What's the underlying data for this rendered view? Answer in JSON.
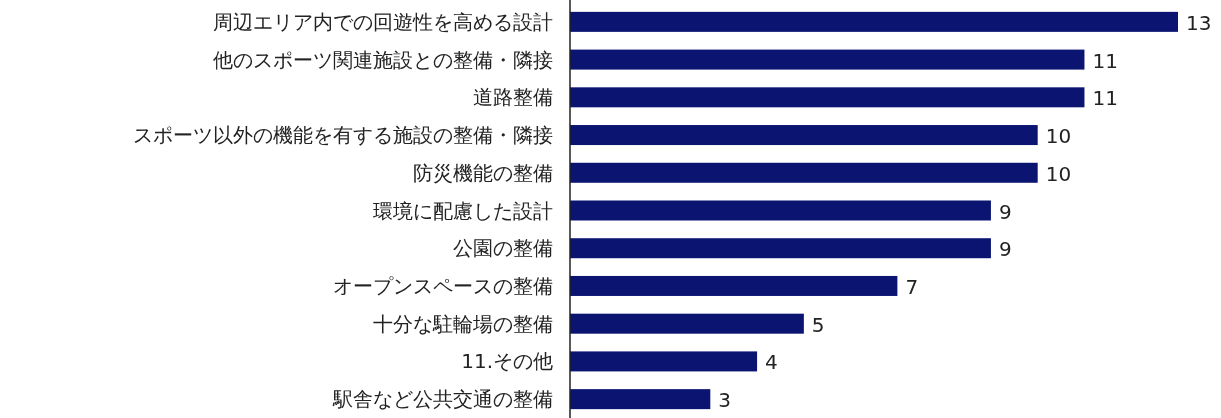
{
  "chart_data": {
    "type": "bar",
    "orientation": "horizontal",
    "categories": [
      "周辺エリア内での回遊性を高める設計",
      "他のスポーツ関連施設との整備・隣接",
      "道路整備",
      "スポーツ以外の機能を有する施設の整備・隣接",
      "防災機能の整備",
      "環境に配慮した設計",
      "公園の整備",
      "オープンスペースの整備",
      "十分な駐輪場の整備",
      "11.その他",
      "駅舎など公共交通の整備"
    ],
    "values": [
      13,
      11,
      11,
      10,
      10,
      9,
      9,
      7,
      5,
      4,
      3
    ],
    "color": "#0b1470",
    "data_labels": true
  }
}
